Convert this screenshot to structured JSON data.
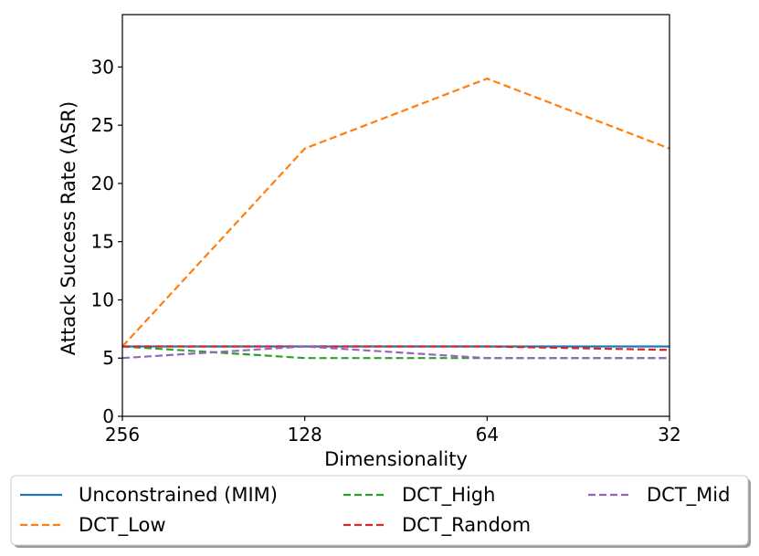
{
  "chart_data": {
    "type": "line",
    "title": "",
    "xlabel": "Dimensionality",
    "ylabel": "Attack Success Rate (ASR)",
    "x": [
      "256",
      "128",
      "64",
      "32"
    ],
    "ylim": [
      0,
      34.5
    ],
    "yticks": [
      0,
      5,
      10,
      15,
      20,
      25,
      30
    ],
    "grid": false,
    "legend_placement": "bottom",
    "series": [
      {
        "name": "Unconstrained (MIM)",
        "values": [
          6,
          6,
          6,
          6
        ],
        "color": "#1f77b4",
        "style": "solid"
      },
      {
        "name": "DCT_Low",
        "values": [
          6,
          23,
          29,
          23
        ],
        "color": "#ff7f0e",
        "style": "dashed"
      },
      {
        "name": "DCT_High",
        "values": [
          6,
          5,
          5,
          5
        ],
        "color": "#2ca02c",
        "style": "dashed"
      },
      {
        "name": "DCT_Random",
        "values": [
          6,
          6,
          6,
          5.7
        ],
        "color": "#d62728",
        "style": "dashed"
      },
      {
        "name": "DCT_Mid",
        "values": [
          5,
          6,
          5,
          5
        ],
        "color": "#9467bd",
        "style": "dashed"
      }
    ]
  }
}
